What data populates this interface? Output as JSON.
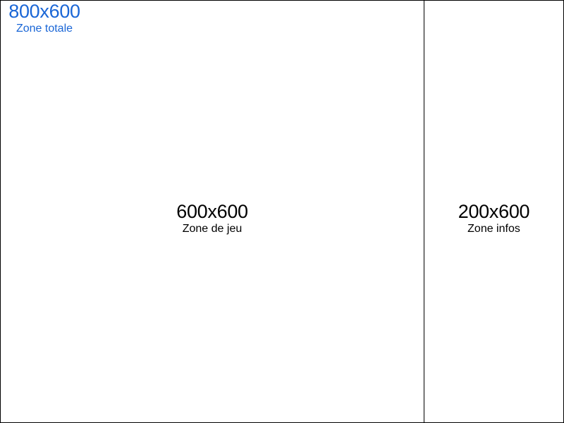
{
  "total_zone": {
    "size": "800x600",
    "name": "Zone totale",
    "color": "#1a66d6"
  },
  "game_zone": {
    "size": "600x600",
    "name": "Zone de jeu"
  },
  "info_zone": {
    "size": "200x600",
    "name": "Zone infos"
  }
}
